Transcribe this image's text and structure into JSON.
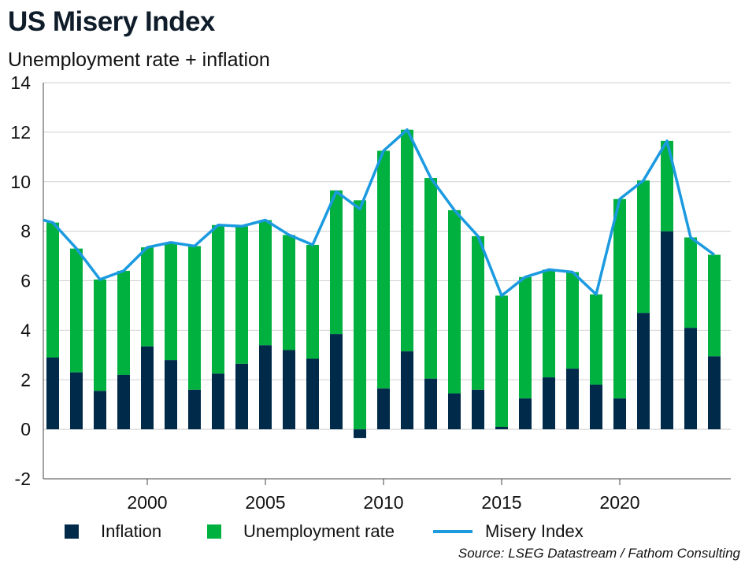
{
  "header": {
    "title": "US Misery Index",
    "subtitle": "Unemployment rate + inflation"
  },
  "legend": {
    "inflation_label": "Inflation",
    "unemployment_label": "Unemployment rate",
    "misery_label": "Misery Index"
  },
  "footer": {
    "source": "Source: LSEG Datastream / Fathom Consulting"
  },
  "colors": {
    "inflation": "#002a4a",
    "unemployment": "#00b140",
    "misery": "#1b9ae0",
    "grid": "#d0d0d0",
    "axis": "#444444"
  },
  "chart_data": {
    "type": "bar",
    "stacked": true,
    "title": "US Misery Index",
    "subtitle": "Unemployment rate + inflation",
    "ylim": [
      -2,
      14
    ],
    "yticks": [
      -2,
      0,
      2,
      4,
      6,
      8,
      10,
      12,
      14
    ],
    "xlim": [
      1995.6,
      2024.7
    ],
    "xticks": [
      2000,
      2005,
      2010,
      2015,
      2020
    ],
    "grid": true,
    "legend_position": "bottom",
    "years": [
      1996,
      1997,
      1998,
      1999,
      2000,
      2001,
      2002,
      2003,
      2004,
      2005,
      2006,
      2007,
      2008,
      2009,
      2010,
      2011,
      2012,
      2013,
      2014,
      2015,
      2016,
      2017,
      2018,
      2019,
      2020,
      2021,
      2022,
      2023,
      2024
    ],
    "series": [
      {
        "name": "Inflation",
        "kind": "bar",
        "values": [
          2.9,
          2.3,
          1.55,
          2.2,
          3.35,
          2.8,
          1.6,
          2.25,
          2.65,
          3.4,
          3.2,
          2.85,
          3.85,
          -0.35,
          1.65,
          3.15,
          2.05,
          1.45,
          1.6,
          0.1,
          1.25,
          2.1,
          2.45,
          1.8,
          1.25,
          4.7,
          8.0,
          4.1,
          2.95
        ]
      },
      {
        "name": "Unemployment rate",
        "kind": "bar",
        "values": [
          5.45,
          5.0,
          4.5,
          4.2,
          4.0,
          4.7,
          5.8,
          6.0,
          5.55,
          5.05,
          4.65,
          4.6,
          5.8,
          9.25,
          9.6,
          8.95,
          8.1,
          7.4,
          6.2,
          5.3,
          4.9,
          4.35,
          3.9,
          3.65,
          8.05,
          5.35,
          3.65,
          3.65,
          4.1
        ]
      },
      {
        "name": "Misery Index",
        "kind": "line",
        "x": [
          1995.6,
          1996,
          1997,
          1998,
          1999,
          2000,
          2001,
          2002,
          2003,
          2004,
          2005,
          2006,
          2007,
          2008,
          2009,
          2010,
          2011,
          2012,
          2013,
          2014,
          2015,
          2016,
          2017,
          2018,
          2019,
          2020,
          2021,
          2022,
          2023,
          2024
        ],
        "values": [
          8.45,
          8.35,
          7.3,
          6.05,
          6.4,
          7.35,
          7.55,
          7.4,
          8.25,
          8.2,
          8.45,
          7.85,
          7.45,
          9.6,
          8.9,
          11.25,
          12.1,
          10.15,
          8.85,
          7.8,
          5.4,
          6.15,
          6.45,
          6.35,
          5.45,
          9.3,
          10.05,
          11.65,
          7.75,
          7.05
        ]
      }
    ]
  }
}
